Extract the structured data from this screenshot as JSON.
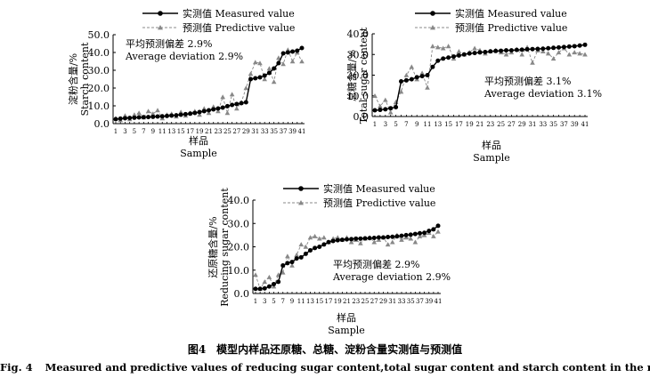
{
  "caption": {
    "cn": "图4　模型内样品还原糖、总糖、淀粉含量实测值与预测值",
    "en_num": "Fig. 4",
    "en_text": "Measured and predictive values of reducing sugar content,total sugar content and starch content in the model"
  },
  "chart_data": [
    {
      "type": "line",
      "id": "starch",
      "ylabel": [
        "淀粉含量/%",
        "Starch content"
      ],
      "xlabel": [
        "样品",
        "Sample"
      ],
      "ylim": [
        0,
        50
      ],
      "yticks": [
        "0.0",
        "10.0",
        "20.0",
        "30.0",
        "40.0",
        "50.0"
      ],
      "xticks": [
        "1",
        "3",
        "5",
        "7",
        "9",
        "11",
        "13",
        "15",
        "17",
        "19",
        "21",
        "23",
        "25",
        "27",
        "29",
        "31",
        "33",
        "35",
        "37",
        "39",
        "41"
      ],
      "annotation": [
        "平均预测偏差 2.9%",
        "Average deviation 2.9%"
      ],
      "legend": [
        "实测值 Measured value",
        "预测值 Predictive value"
      ],
      "series": [
        {
          "name": "实测值 Measured value",
          "values": [
            2.5,
            2.8,
            3.0,
            3.2,
            3.3,
            3.5,
            3.6,
            3.7,
            3.8,
            4.0,
            4.1,
            4.3,
            4.5,
            4.7,
            5.0,
            5.3,
            5.6,
            6.0,
            6.5,
            7.0,
            7.5,
            8.0,
            8.5,
            9.0,
            9.8,
            10.5,
            11.0,
            11.5,
            12.0,
            25.0,
            25.5,
            26.0,
            27.0,
            28.5,
            31.0,
            34.0,
            39.5,
            40.0,
            40.5,
            41.0,
            42.5
          ]
        },
        {
          "name": "预测值 Predictive value",
          "values": [
            3.0,
            2.0,
            4.5,
            2.5,
            5.0,
            6.0,
            3.5,
            7.0,
            5.5,
            7.5,
            3.0,
            5.0,
            5.5,
            4.0,
            6.5,
            4.5,
            6.0,
            7.0,
            5.0,
            8.5,
            6.0,
            9.5,
            7.0,
            15.0,
            6.0,
            16.5,
            8.5,
            12.0,
            20.0,
            28.0,
            34.5,
            34.0,
            25.0,
            31.0,
            23.5,
            37.0,
            33.5,
            41.5,
            35.0,
            40.0,
            35.0
          ]
        }
      ]
    },
    {
      "type": "line",
      "id": "total-sugar",
      "ylabel": [
        "总糖含量/%",
        "Total sugar content"
      ],
      "xlabel": [
        "样品",
        "Sample"
      ],
      "ylim": [
        0,
        40
      ],
      "yticks": [
        "0.0",
        "10.0",
        "20.0",
        "30.0",
        "40.0"
      ],
      "xticks": [
        "1",
        "3",
        "5",
        "7",
        "9",
        "11",
        "13",
        "15",
        "17",
        "19",
        "21",
        "23",
        "25",
        "27",
        "29",
        "31",
        "33",
        "35",
        "37",
        "39",
        "41"
      ],
      "annotation": [
        "平均预测偏差 3.1%",
        "Average deviation 3.1%"
      ],
      "legend": [
        "实测值 Measured value",
        "预测值 Predictive value"
      ],
      "series": [
        {
          "name": "实测值 Measured value",
          "values": [
            3.0,
            3.2,
            3.5,
            4.0,
            4.5,
            17.0,
            17.5,
            18.0,
            19.0,
            19.5,
            20.0,
            24.0,
            27.0,
            28.0,
            28.5,
            29.0,
            29.5,
            30.0,
            30.5,
            30.7,
            31.0,
            31.2,
            31.5,
            31.7,
            31.8,
            32.0,
            32.0,
            32.2,
            32.3,
            32.5,
            32.6,
            32.7,
            32.8,
            33.0,
            33.2,
            33.4,
            33.6,
            33.8,
            34.0,
            34.3,
            34.7
          ]
        },
        {
          "name": "预测值 Predictive value",
          "values": [
            10.0,
            5.0,
            8.0,
            2.0,
            7.0,
            12.0,
            20.0,
            24.0,
            18.0,
            21.0,
            14.0,
            34.0,
            33.5,
            33.0,
            34.0,
            28.0,
            31.5,
            30.0,
            31.0,
            33.0,
            32.0,
            30.5,
            31.5,
            32.0,
            31.0,
            30.0,
            31.0,
            32.5,
            30.0,
            33.5,
            26.0,
            32.0,
            31.5,
            30.5,
            28.0,
            31.0,
            33.0,
            30.0,
            31.0,
            30.5,
            30.0
          ]
        }
      ]
    },
    {
      "type": "line",
      "id": "reducing-sugar",
      "ylabel": [
        "还原糖含量/%",
        "Reducing sugar content"
      ],
      "xlabel": [
        "样品",
        "Sample"
      ],
      "ylim": [
        0,
        40
      ],
      "yticks": [
        "0.0",
        "10.0",
        "20.0",
        "30.0",
        "40.0"
      ],
      "xticks": [
        "1",
        "3",
        "5",
        "7",
        "9",
        "11",
        "13",
        "15",
        "17",
        "19",
        "21",
        "23",
        "25",
        "27",
        "29",
        "31",
        "33",
        "35",
        "37",
        "39",
        "41"
      ],
      "annotation": [
        "平均预测偏差 2.9%",
        "Average deviation 2.9%"
      ],
      "legend": [
        "实测值 Measured value",
        "预测值 Predictive value"
      ],
      "series": [
        {
          "name": "实测值 Measured value",
          "values": [
            2.0,
            2.0,
            2.2,
            3.0,
            4.0,
            5.0,
            12.0,
            13.0,
            13.5,
            15.0,
            15.5,
            17.0,
            18.5,
            19.5,
            20.0,
            21.0,
            22.0,
            22.5,
            22.8,
            23.0,
            23.2,
            23.3,
            23.5,
            23.5,
            23.6,
            23.7,
            23.8,
            24.0,
            24.0,
            24.2,
            24.3,
            24.5,
            24.7,
            25.0,
            25.2,
            25.5,
            25.8,
            26.0,
            26.8,
            27.5,
            29.0
          ]
        },
        {
          "name": "预测值 Predictive value",
          "values": [
            8.0,
            2.0,
            5.0,
            7.0,
            3.0,
            8.0,
            9.0,
            16.0,
            12.0,
            16.5,
            21.0,
            20.0,
            24.0,
            24.5,
            23.5,
            24.0,
            22.0,
            23.5,
            24.0,
            23.0,
            24.0,
            22.0,
            23.0,
            21.5,
            23.5,
            24.0,
            22.0,
            23.0,
            24.0,
            21.0,
            22.0,
            25.0,
            23.0,
            24.0,
            23.5,
            22.0,
            24.5,
            25.0,
            26.0,
            24.5,
            26.5
          ]
        }
      ]
    }
  ]
}
